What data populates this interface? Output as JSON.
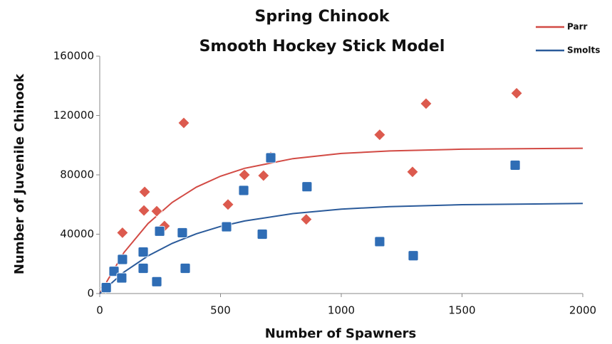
{
  "chart_data": {
    "type": "scatter",
    "title": "Spring Chinook",
    "subtitle": "Smooth Hockey Stick Model",
    "x_label": "Number of Spawners",
    "y_label": "Number of Juvenile Chinook",
    "xlim": [
      0,
      2000
    ],
    "xticks": [
      0,
      500,
      1000,
      1500,
      2000
    ],
    "ylim": [
      0,
      160000
    ],
    "yticks": [
      0,
      40000,
      80000,
      120000,
      160000
    ],
    "grid": false,
    "legend": "top-right",
    "series": [
      {
        "name": "Parr",
        "color": "#d24a44",
        "marker": "diamond",
        "marker_color": "#dc5a4e",
        "x": [
          25,
          94,
          183,
          186,
          236,
          268,
          348,
          531,
          599,
          678,
          708,
          855,
          1159,
          1295,
          1351,
          1726
        ],
        "values": [
          4000,
          41000,
          56000,
          68500,
          55500,
          45500,
          115000,
          60000,
          80000,
          79500,
          92000,
          50000,
          107000,
          82000,
          128000,
          135000
        ],
        "fit_x": [
          0,
          100,
          200,
          300,
          400,
          500,
          600,
          800,
          1000,
          1200,
          1500,
          2000
        ],
        "fit_values": [
          0,
          27600,
          47200,
          61400,
          71700,
          79100,
          84400,
          90900,
          94400,
          96100,
          97300,
          97900
        ]
      },
      {
        "name": "Smolts",
        "color": "#2a5a9a",
        "marker": "square",
        "marker_color": "#2f6db5",
        "x": [
          27,
          59,
          94,
          91,
          180,
          180,
          236,
          248,
          354,
          342,
          525,
          596,
          673,
          708,
          858,
          1159,
          1298,
          1720
        ],
        "values": [
          4000,
          15000,
          23000,
          10500,
          28000,
          17000,
          8000,
          42000,
          17000,
          41000,
          45000,
          69500,
          40000,
          91500,
          72000,
          35000,
          25500,
          86500
        ],
        "fit_x": [
          0,
          100,
          200,
          300,
          400,
          500,
          600,
          800,
          1000,
          1200,
          1500,
          2000
        ],
        "fit_values": [
          0,
          14400,
          25400,
          33800,
          40300,
          45200,
          48900,
          53900,
          56900,
          58600,
          59900,
          60700
        ]
      }
    ]
  }
}
